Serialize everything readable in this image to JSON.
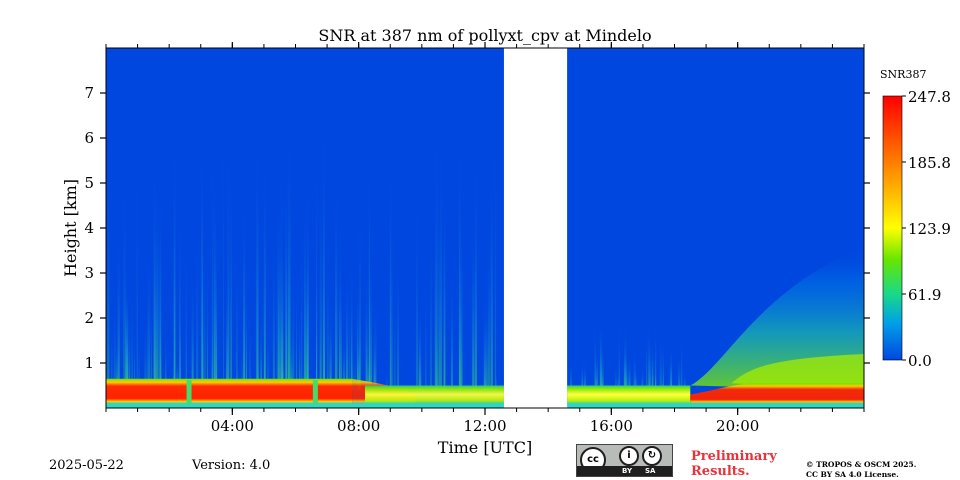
{
  "chart_data": {
    "type": "heatmap",
    "title": "SNR at 387 nm of pollyxt_cpv at Mindelo",
    "xlabel": "Time [UTC]",
    "ylabel": "Height [km]",
    "xlim_hours": [
      0,
      24
    ],
    "ylim_km": [
      0,
      8
    ],
    "x_ticks": [
      {
        "value": 4,
        "label": "04:00"
      },
      {
        "value": 8,
        "label": "08:00"
      },
      {
        "value": 12,
        "label": "12:00"
      },
      {
        "value": 16,
        "label": "16:00"
      },
      {
        "value": 20,
        "label": "20:00"
      }
    ],
    "y_ticks": [
      {
        "value": 1,
        "label": "1"
      },
      {
        "value": 2,
        "label": "2"
      },
      {
        "value": 3,
        "label": "3"
      },
      {
        "value": 4,
        "label": "4"
      },
      {
        "value": 5,
        "label": "5"
      },
      {
        "value": 6,
        "label": "6"
      },
      {
        "value": 7,
        "label": "7"
      }
    ],
    "no_data_interval_hours": [
      12.6,
      14.6
    ],
    "colorbar": {
      "label": "SNR387",
      "min": 0.0,
      "max": 247.8,
      "ticks": [
        "247.8",
        "185.8",
        "123.9",
        "61.9",
        "0.0"
      ],
      "colormap": [
        "#0047e0",
        "#00b4e6",
        "#19d989",
        "#66e600",
        "#ffff00",
        "#ff9900",
        "#ff3300",
        "#ff0000"
      ]
    },
    "features": {
      "near_surface_layer_km": [
        0.1,
        0.55
      ],
      "near_surface_snr": 240,
      "evening_enhancement_start_hour": 18.5
    }
  },
  "footer": {
    "date": "2025-05-22",
    "version": "Version: 4.0",
    "preliminary": [
      "Preliminary",
      "Results."
    ],
    "copyright": [
      "© TROPOS & OSCM 2025.",
      "CC BY SA 4.0 License."
    ],
    "license_badge": {
      "cc": "cc",
      "by": "BY",
      "sa": "SA"
    }
  }
}
